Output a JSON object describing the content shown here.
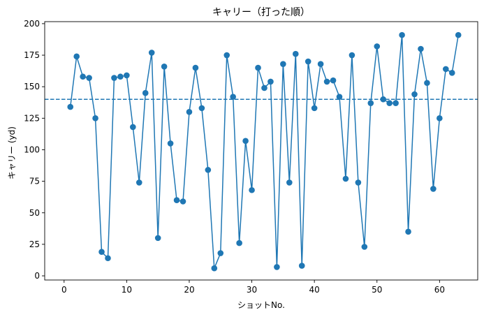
{
  "chart_data": {
    "type": "line",
    "title": "キャリー（打った順）",
    "xlabel": "ショットNo.",
    "ylabel": "キャリー (yd)",
    "xlim": [
      -3.1,
      66.1
    ],
    "ylim": [
      -3.3,
      201.6
    ],
    "xticks": [
      0,
      10,
      20,
      30,
      40,
      50,
      60
    ],
    "yticks": [
      0,
      25,
      50,
      75,
      100,
      125,
      150,
      175,
      200
    ],
    "grid": false,
    "series_color": "#1f77b4",
    "reference_line": {
      "y": 140,
      "style": "dashed",
      "color": "#1f77b4"
    },
    "x": [
      1,
      2,
      3,
      4,
      5,
      6,
      7,
      8,
      9,
      10,
      11,
      12,
      13,
      14,
      15,
      16,
      17,
      18,
      19,
      20,
      21,
      22,
      23,
      24,
      25,
      26,
      27,
      28,
      29,
      30,
      31,
      32,
      33,
      34,
      35,
      36,
      37,
      38,
      39,
      40,
      41,
      42,
      43,
      44,
      45,
      46,
      47,
      48,
      49,
      50,
      51,
      52,
      53,
      54,
      55,
      56,
      57,
      58,
      59,
      60,
      61,
      62,
      63
    ],
    "values": [
      134,
      174,
      158,
      157,
      125,
      19,
      14,
      157,
      158,
      159,
      118,
      74,
      145,
      177,
      30,
      166,
      105,
      60,
      59,
      130,
      165,
      133,
      84,
      6,
      18,
      175,
      142,
      26,
      107,
      68,
      165,
      149,
      154,
      7,
      168,
      74,
      176,
      8,
      170,
      133,
      168,
      154,
      155,
      142,
      77,
      175,
      74,
      23,
      137,
      182,
      140,
      137,
      137,
      191,
      35,
      144,
      180,
      153,
      69,
      125,
      164,
      161,
      191
    ]
  }
}
